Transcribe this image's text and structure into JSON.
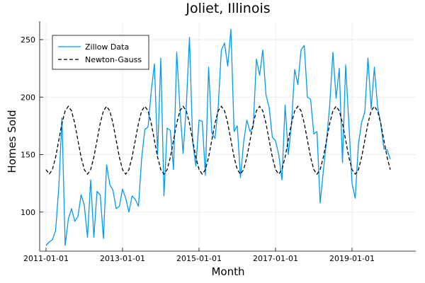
{
  "chart_data": {
    "type": "line",
    "title": "Joliet, Illinois",
    "xlabel": "Month",
    "ylabel": "Homes Sold",
    "x_range": [
      "2010-11-01",
      "2020-09-01"
    ],
    "ylim": [
      66,
      266
    ],
    "x_ticks": [
      "2011-01-01",
      "2013-01-01",
      "2015-01-01",
      "2017-01-01",
      "2019-01-01"
    ],
    "y_ticks": [
      100,
      150,
      200,
      250
    ],
    "grid": true,
    "legend": "top-left",
    "series": [
      {
        "name": "Zillow Data",
        "color": "#009af9",
        "style": "solid",
        "start": "2011-01-01",
        "frequency": "monthly",
        "values": [
          71,
          74,
          76,
          84,
          121,
          182,
          71,
          94,
          103,
          92,
          96,
          115,
          106,
          78,
          128,
          78,
          118,
          115,
          77,
          141,
          124,
          119,
          103,
          105,
          120,
          112,
          100,
          114,
          111,
          105,
          147,
          172,
          174,
          205,
          229,
          150,
          234,
          114,
          173,
          171,
          137,
          239,
          190,
          151,
          192,
          252,
          161,
          140,
          180,
          179,
          132,
          226,
          169,
          164,
          191,
          241,
          247,
          227,
          259,
          170,
          175,
          130,
          161,
          180,
          170,
          174,
          233,
          219,
          241,
          202,
          191,
          165,
          162,
          150,
          128,
          193,
          150,
          176,
          224,
          211,
          241,
          245,
          200,
          198,
          168,
          170,
          108,
          136,
          162,
          193,
          239,
          199,
          225,
          143,
          228,
          177,
          125,
          112,
          159,
          178,
          187,
          234,
          190,
          226,
          192,
          177,
          155,
          154,
          146
        ]
      },
      {
        "name": "Newton-Gauss",
        "color": "#000000",
        "style": "dashed",
        "model": "sinusoid",
        "mean": 162.5,
        "amplitude": 29.5,
        "period_months": 12,
        "peak_month": 7
      }
    ]
  }
}
